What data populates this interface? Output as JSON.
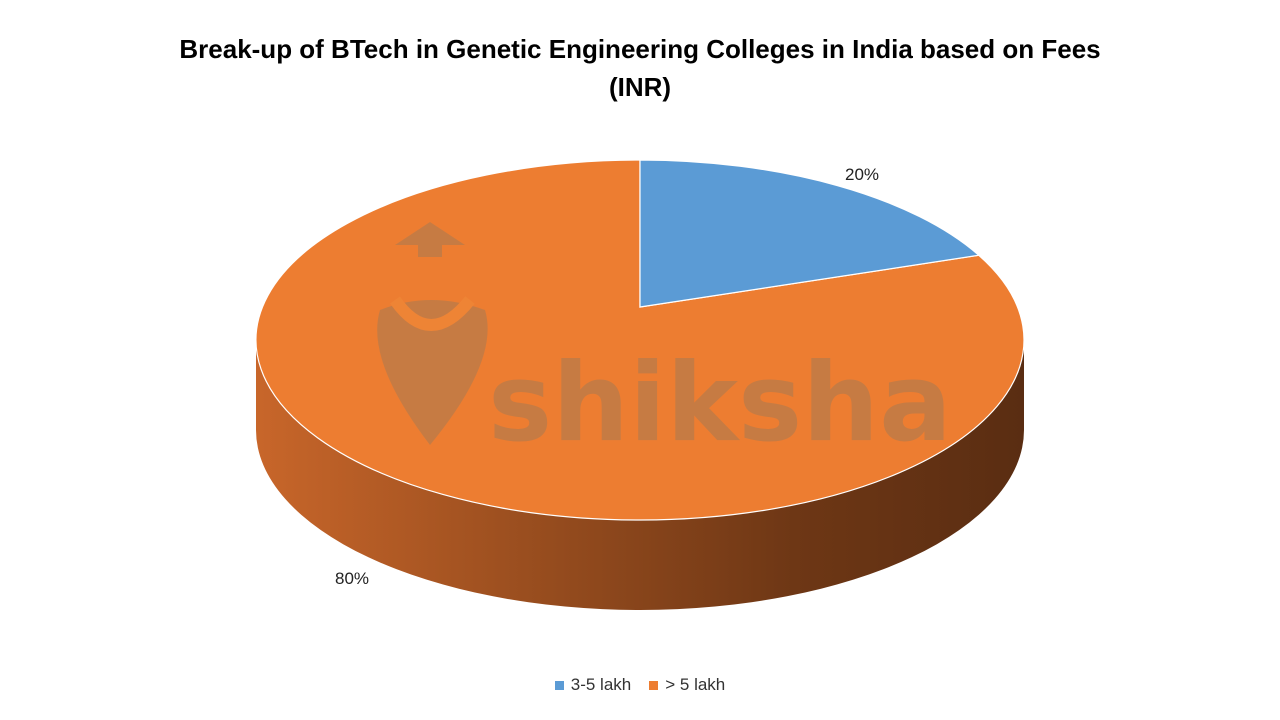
{
  "chart_data": {
    "type": "pie",
    "title": "Break-up of BTech in Genetic Engineering Colleges in India based on Fees (INR)",
    "title_line1": "Break-up of BTech in Genetic Engineering Colleges in India based on Fees",
    "title_line2": "(INR)",
    "categories": [
      "3-5 lakh",
      "> 5 lakh"
    ],
    "values": [
      20,
      80
    ],
    "data_labels": [
      "20%",
      "80%"
    ],
    "colors": [
      "#5B9BD5",
      "#ED7D31"
    ],
    "legend_position": "bottom"
  },
  "watermark": "shiksha"
}
